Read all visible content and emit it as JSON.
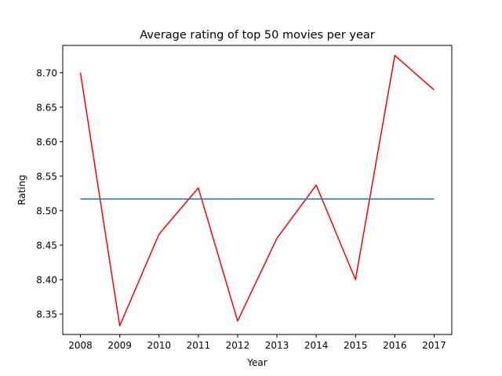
{
  "chart_data": {
    "type": "line",
    "title": "Average rating of top 50 movies per year",
    "xlabel": "Year",
    "ylabel": "Rating",
    "x": [
      2008,
      2009,
      2010,
      2011,
      2012,
      2013,
      2014,
      2015,
      2016,
      2017
    ],
    "xlim": [
      2007.55,
      2017.45
    ],
    "ylim": [
      8.3205,
      8.7395
    ],
    "xticks": [
      "2008",
      "2009",
      "2010",
      "2011",
      "2012",
      "2013",
      "2014",
      "2015",
      "2016",
      "2017"
    ],
    "yticks": [
      "8.35",
      "8.40",
      "8.45",
      "8.50",
      "8.55",
      "8.60",
      "8.65",
      "8.70"
    ],
    "grid": false,
    "legend": "none",
    "series": [
      {
        "color": "#ff0000",
        "values": [
          8.7,
          8.333,
          8.466,
          8.533,
          8.34,
          8.46,
          8.537,
          8.4,
          8.725,
          8.675
        ]
      },
      {
        "color": "#1f77b4",
        "values": [
          8.517,
          8.517,
          8.517,
          8.517,
          8.517,
          8.517,
          8.517,
          8.517,
          8.517,
          8.517
        ]
      }
    ]
  }
}
